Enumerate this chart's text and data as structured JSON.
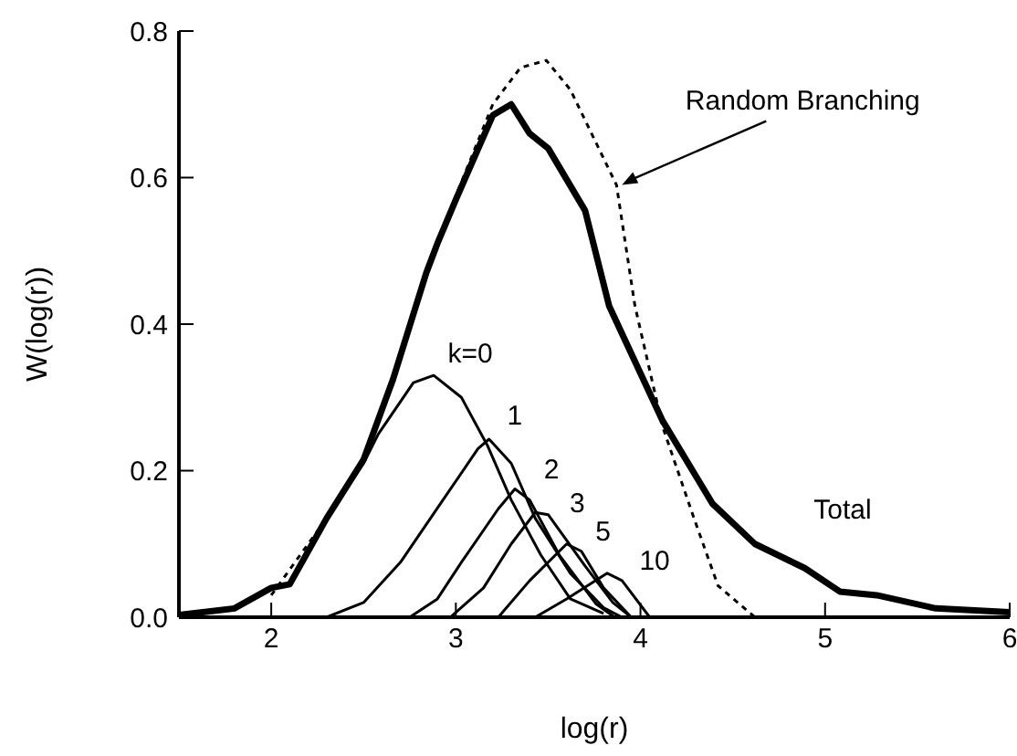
{
  "chart_data": {
    "type": "line",
    "xlabel": "log(r)",
    "ylabel": "W(log(r))",
    "xlim": [
      1.5,
      6
    ],
    "xticks": [
      2,
      3,
      4,
      5,
      6
    ],
    "ylim": [
      0,
      0.8
    ],
    "yticks": [
      {
        "value": 0,
        "label": "0.0"
      },
      {
        "value": 0.2,
        "label": "0.2"
      },
      {
        "value": 0.4,
        "label": "0.4"
      },
      {
        "value": 0.6,
        "label": "0.6"
      },
      {
        "value": 0.8,
        "label": "0.8"
      }
    ],
    "marker": "none",
    "series": [
      {
        "name": "Total",
        "color": "#000000",
        "line_style": "solid",
        "x": [
          1.5,
          1.8,
          2.0,
          2.1,
          2.3,
          2.5,
          2.66,
          2.84,
          2.9,
          3.0,
          3.2,
          3.3,
          3.4,
          3.5,
          3.7,
          3.83,
          4.12,
          4.39,
          4.62,
          4.89,
          5.08,
          5.28,
          5.6,
          6.0
        ],
        "values": [
          0.003,
          0.012,
          0.04,
          0.045,
          0.135,
          0.215,
          0.325,
          0.47,
          0.51,
          0.57,
          0.685,
          0.7,
          0.66,
          0.64,
          0.555,
          0.425,
          0.268,
          0.155,
          0.1,
          0.067,
          0.035,
          0.03,
          0.012,
          0.007
        ]
      },
      {
        "name": "Random Branching",
        "color": "#000000",
        "line_style": "dotted",
        "x": [
          2.0,
          2.3,
          2.5,
          2.66,
          2.84,
          3.0,
          3.2,
          3.35,
          3.49,
          3.62,
          3.87,
          3.97,
          4.12,
          4.29,
          4.42,
          4.62
        ],
        "values": [
          0.03,
          0.135,
          0.215,
          0.325,
          0.47,
          0.575,
          0.7,
          0.75,
          0.76,
          0.72,
          0.59,
          0.425,
          0.26,
          0.135,
          0.043,
          0.0
        ]
      },
      {
        "name": "k=0",
        "color": "#000000",
        "line_style": "solid",
        "x": [
          1.5,
          1.8,
          2.0,
          2.1,
          2.3,
          2.5,
          2.58,
          2.77,
          2.88,
          3.03,
          3.17,
          3.3,
          3.46,
          3.62,
          3.8
        ],
        "values": [
          0.003,
          0.012,
          0.04,
          0.045,
          0.135,
          0.21,
          0.25,
          0.32,
          0.33,
          0.3,
          0.235,
          0.16,
          0.085,
          0.025,
          0.005
        ]
      },
      {
        "name": "1",
        "color": "#000000",
        "line_style": "solid",
        "x": [
          2.3,
          2.5,
          2.7,
          2.93,
          3.12,
          3.18,
          3.3,
          3.43,
          3.62,
          3.8,
          3.9
        ],
        "values": [
          0.0,
          0.02,
          0.075,
          0.16,
          0.23,
          0.243,
          0.21,
          0.135,
          0.06,
          0.013,
          0.0
        ]
      },
      {
        "name": "2",
        "color": "#000000",
        "line_style": "solid",
        "x": [
          2.75,
          2.9,
          3.03,
          3.23,
          3.32,
          3.4,
          3.56,
          3.76,
          3.86
        ],
        "values": [
          0.0,
          0.025,
          0.075,
          0.148,
          0.175,
          0.16,
          0.085,
          0.018,
          0.0
        ]
      },
      {
        "name": "3",
        "color": "#000000",
        "line_style": "solid",
        "x": [
          2.97,
          3.15,
          3.3,
          3.43,
          3.5,
          3.7,
          3.85,
          3.95
        ],
        "values": [
          0.0,
          0.04,
          0.1,
          0.143,
          0.14,
          0.07,
          0.02,
          0.0
        ]
      },
      {
        "name": "5",
        "color": "#000000",
        "line_style": "solid",
        "x": [
          3.23,
          3.4,
          3.6,
          3.68,
          3.8,
          3.95
        ],
        "values": [
          0.0,
          0.05,
          0.1,
          0.09,
          0.04,
          0.0
        ]
      },
      {
        "name": "10",
        "color": "#000000",
        "line_style": "solid",
        "x": [
          3.43,
          3.6,
          3.82,
          3.9,
          4.05
        ],
        "values": [
          0.0,
          0.025,
          0.06,
          0.05,
          0.0
        ]
      }
    ]
  }
}
